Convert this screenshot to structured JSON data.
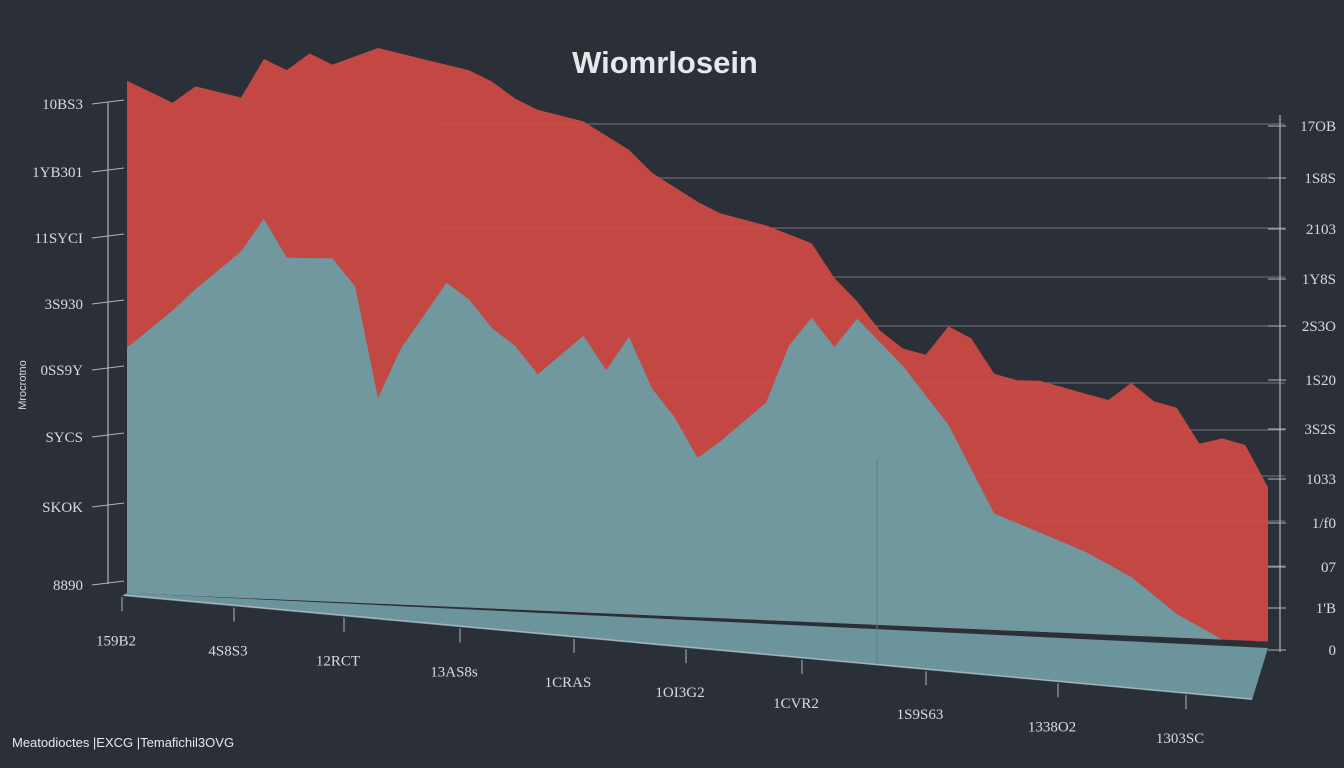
{
  "chart_data": {
    "type": "area",
    "title": "Wiomrlosein",
    "ylabel": "Mrocrotno",
    "footer": "Meatodioctes |EXCG |Temafichil3OVG",
    "colors": {
      "background": "#2b2f38",
      "series_top": "#cf4a45",
      "series_bottom": "#6e9aa2",
      "grid": "#8a9099"
    },
    "grid": true,
    "view": "3d-perspective",
    "x_categories": [
      "159B2",
      "4S8S3",
      "12RCT",
      "13AS8s",
      "1CRAS",
      "1OI3G2",
      "1CVR2",
      "1S9S63",
      "1338O2",
      "1303SC"
    ],
    "y_ticks_left": [
      "10BS3",
      "1YB301",
      "11SYCI",
      "3S930",
      "0SS9Y",
      "SYCS",
      "SKOK",
      "8890"
    ],
    "y_ticks_right": [
      "17OB",
      "1S8S",
      "2103",
      "1Y8S",
      "2S3O",
      "1S20",
      "3S2S",
      "1033",
      "1/f0",
      "07",
      "1'B",
      "0"
    ],
    "x_index_range": [
      0,
      50
    ],
    "y_range": [
      0,
      100
    ],
    "series": [
      {
        "name": "",
        "x": [
          0,
          2,
          3,
          5,
          6,
          7,
          8,
          9,
          11,
          12,
          13,
          14,
          15,
          16,
          17,
          18,
          20,
          22,
          23,
          25,
          26,
          28,
          30,
          31,
          32,
          33,
          34,
          35,
          36,
          37,
          38,
          39,
          40,
          41,
          42,
          43,
          44,
          45,
          46,
          47,
          48,
          49,
          50
        ],
        "values": [
          94,
          90,
          93,
          91,
          98,
          96,
          99,
          97,
          100,
          99,
          98,
          97,
          96,
          94,
          91,
          89,
          87,
          82,
          78,
          73,
          71,
          69,
          66,
          60,
          56,
          51,
          48,
          47,
          52,
          50,
          44,
          43,
          43,
          42,
          41,
          40,
          43,
          40,
          39,
          33,
          34,
          33,
          26
        ]
      },
      {
        "name": "",
        "x": [
          0,
          2,
          3,
          5,
          6,
          7,
          9,
          10,
          11,
          12,
          13,
          14,
          15,
          16,
          17,
          18,
          20,
          21,
          22,
          23,
          24,
          25,
          26,
          28,
          29,
          30,
          31,
          32,
          34,
          36,
          38,
          40,
          42,
          44,
          45,
          46,
          48,
          50
        ],
        "values": [
          45,
          52,
          56,
          63,
          69,
          62,
          62,
          57,
          37,
          46,
          52,
          58,
          55,
          50,
          47,
          42,
          49,
          43,
          49,
          40,
          35,
          28,
          31,
          38,
          48,
          53,
          48,
          53,
          45,
          35,
          20,
          17,
          14,
          10,
          7,
          4,
          0,
          0
        ]
      }
    ]
  }
}
